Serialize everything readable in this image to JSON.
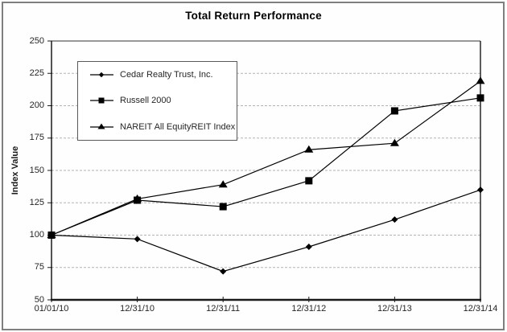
{
  "chart_data": {
    "type": "line",
    "title": "Total Return Performance",
    "ylabel": "Index Value",
    "xlabel": "",
    "x_categories": [
      "01/01/10",
      "12/31/10",
      "12/31/11",
      "12/31/12",
      "12/31/13",
      "12/31/14"
    ],
    "ylim": [
      50,
      250
    ],
    "yticks": [
      250,
      225,
      200,
      175,
      150,
      125,
      100,
      75,
      50
    ],
    "grid": "horizontal-dashed",
    "legend_position": "top-left-inside",
    "series": [
      {
        "name": "Cedar Realty Trust, Inc.",
        "marker": "diamond",
        "color": "#000000",
        "values": [
          100,
          97,
          72,
          91,
          112,
          135
        ]
      },
      {
        "name": "Russell 2000",
        "marker": "square",
        "color": "#000000",
        "values": [
          100,
          127,
          122,
          142,
          196,
          206
        ]
      },
      {
        "name": "NAREIT All EquityREIT Index",
        "marker": "triangle",
        "color": "#000000",
        "values": [
          100,
          128,
          139,
          166,
          171,
          219
        ]
      }
    ],
    "colors": {
      "line": "#000000",
      "grid": "#b3b3b3",
      "axis": "#1a1a1a",
      "frame_border": "#7f7f7f",
      "legend_border": "#595959",
      "background": "#ffffff"
    }
  }
}
